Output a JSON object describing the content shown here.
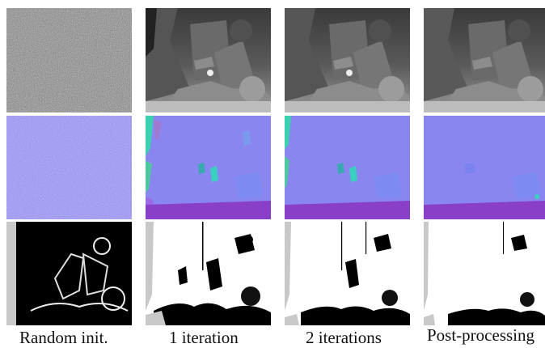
{
  "figure": {
    "captions": [
      "Random init.",
      "1 iteration",
      "2 iterations",
      "Post-processing"
    ],
    "row_kinds": [
      "disparity",
      "normal",
      "confidence"
    ],
    "colors": {
      "disparity_background": "#3a3a3a",
      "normal_base": "#8a86f0",
      "normal_floor": "#8a3fc9",
      "confidence_background": "#ffffff",
      "invalid": "#c8c8c8"
    }
  }
}
